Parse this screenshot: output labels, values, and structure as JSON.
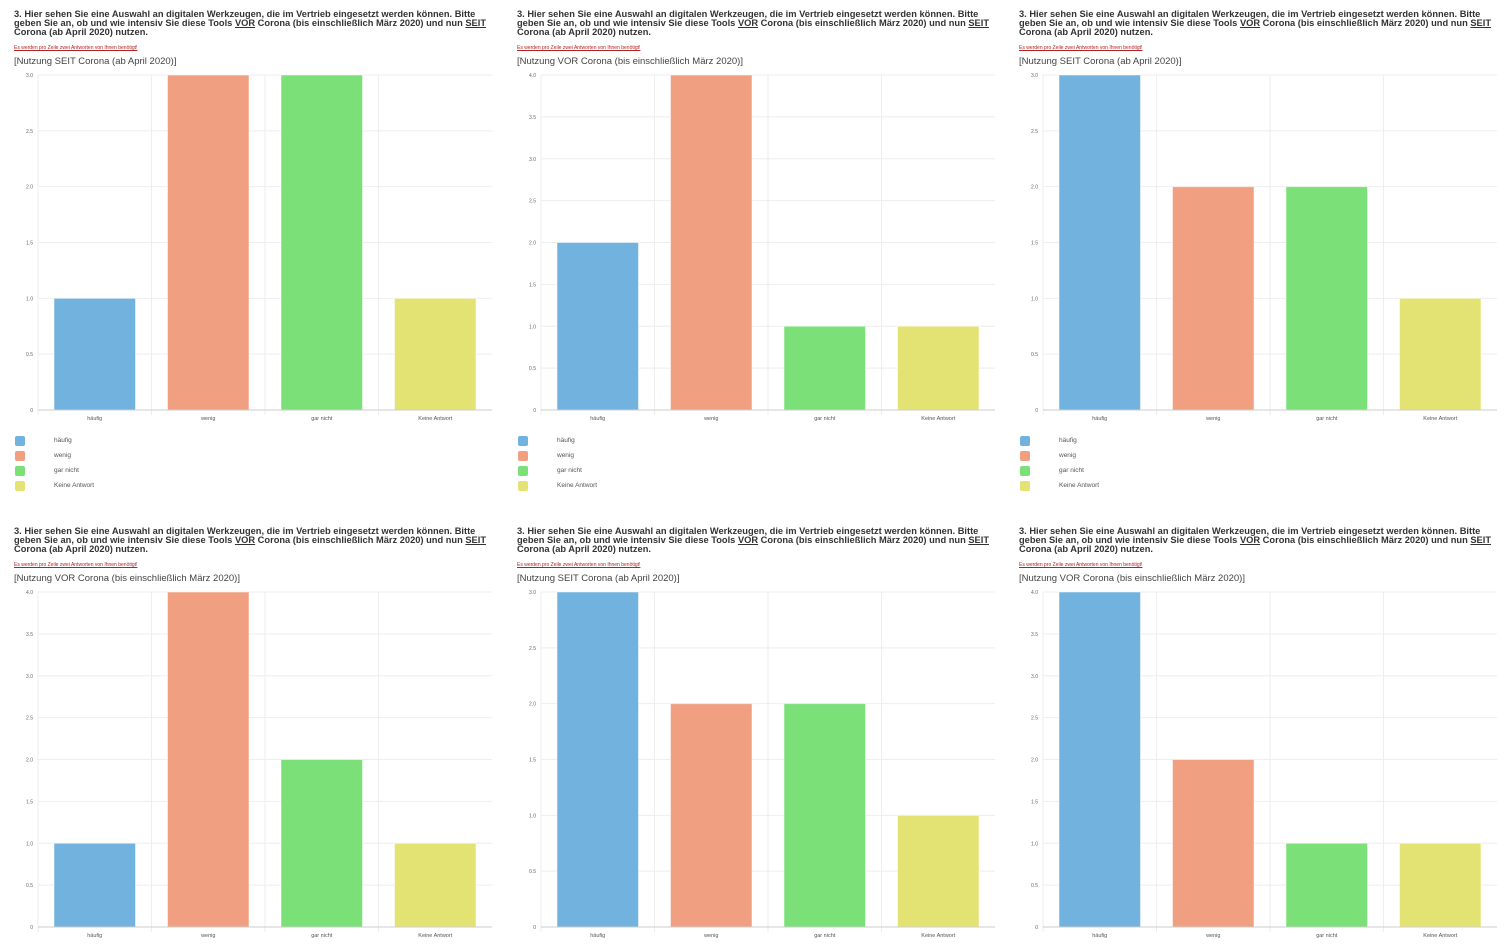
{
  "question": {
    "pre": "3. Hier sehen Sie eine Auswahl an digitalen Werkzeugen, die im Vertrieb eingesetzt werden können. Bitte geben Sie an, ob und wie intensiv Sie diese Tools ",
    "vor": "VOR",
    "mid": " Corona (bis einschließlich März 2020) und nun ",
    "seit": "SEIT",
    "post": " Corona (ab April 2020) nutzen."
  },
  "note": "Es werden pro Zeile zwei Antworten von Ihnen benötigt!",
  "colors": [
    "#72b2de",
    "#f09f81",
    "#7ae077",
    "#e3e374"
  ],
  "chart_data": [
    {
      "type": "bar",
      "subtitle": "[Nutzung SEIT Corona (ab April 2020)]",
      "categories": [
        "häufig",
        "wenig",
        "gar nicht",
        "Keine Antwort"
      ],
      "values": [
        1,
        3,
        3,
        1
      ],
      "ylim": [
        0,
        3
      ],
      "yticks": [
        "0",
        "0.5",
        "1.0",
        "1.5",
        "2.0",
        "2.5",
        "3.0"
      ],
      "legend": true,
      "grid": true
    },
    {
      "type": "bar",
      "subtitle": "[Nutzung VOR Corona (bis einschließlich März 2020)]",
      "categories": [
        "häufig",
        "wenig",
        "gar nicht",
        "Keine Antwort"
      ],
      "values": [
        2,
        4,
        1,
        1
      ],
      "ylim": [
        0,
        4
      ],
      "yticks": [
        "0",
        "0.5",
        "1.0",
        "1.5",
        "2.0",
        "2.5",
        "3.0",
        "3.5",
        "4.0"
      ],
      "legend": true,
      "grid": true
    },
    {
      "type": "bar",
      "subtitle": "[Nutzung SEIT Corona (ab April 2020)]",
      "categories": [
        "häufig",
        "wenig",
        "gar nicht",
        "Keine Antwort"
      ],
      "values": [
        3,
        2,
        2,
        1
      ],
      "ylim": [
        0,
        3
      ],
      "yticks": [
        "0",
        "0.5",
        "1.0",
        "1.5",
        "2.0",
        "2.5",
        "3.0"
      ],
      "legend": true,
      "grid": true
    },
    {
      "type": "bar",
      "subtitle": "[Nutzung VOR Corona (bis einschließlich März 2020)]",
      "categories": [
        "häufig",
        "wenig",
        "gar nicht",
        "Keine Antwort"
      ],
      "values": [
        1,
        4,
        2,
        1
      ],
      "ylim": [
        0,
        4
      ],
      "yticks": [
        "0",
        "0.5",
        "1.0",
        "1.5",
        "2.0",
        "2.5",
        "3.0",
        "3.5",
        "4.0"
      ],
      "legend": false,
      "grid": true
    },
    {
      "type": "bar",
      "subtitle": "[Nutzung SEIT Corona (ab April 2020)]",
      "categories": [
        "häufig",
        "wenig",
        "gar nicht",
        "Keine Antwort"
      ],
      "values": [
        3,
        2,
        2,
        1
      ],
      "ylim": [
        0,
        3
      ],
      "yticks": [
        "0",
        "0.5",
        "1.0",
        "1.5",
        "2.0",
        "2.5",
        "3.0"
      ],
      "legend": false,
      "grid": true
    },
    {
      "type": "bar",
      "subtitle": "[Nutzung VOR Corona (bis einschließlich März 2020)]",
      "categories": [
        "häufig",
        "wenig",
        "gar nicht",
        "Keine Antwort"
      ],
      "values": [
        4,
        2,
        1,
        1
      ],
      "ylim": [
        0,
        4
      ],
      "yticks": [
        "0",
        "0.5",
        "1.0",
        "1.5",
        "2.0",
        "2.5",
        "3.0",
        "3.5",
        "4.0"
      ],
      "legend": false,
      "grid": true
    }
  ]
}
